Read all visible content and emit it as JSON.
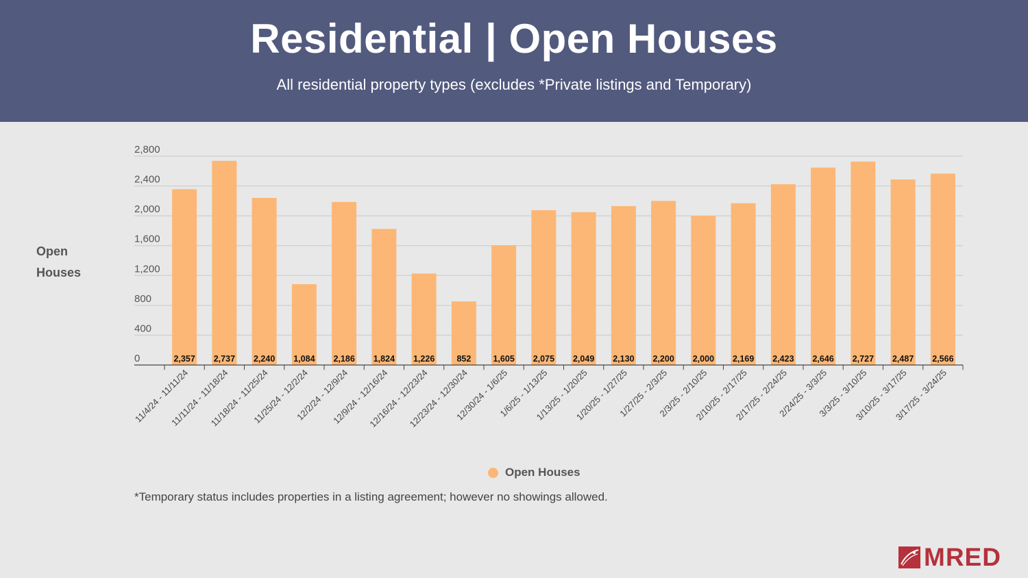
{
  "header": {
    "title": "Residential | Open Houses",
    "subtitle": "All residential property types (excludes *Private listings and Temporary)"
  },
  "colors": {
    "header_bg": "#525a7e",
    "bar": "#fcb776",
    "brand_red": "#b5313c"
  },
  "chart_data": {
    "type": "bar",
    "title": "",
    "xlabel": "",
    "ylabel": "Open Houses",
    "ylim": [
      0,
      2800
    ],
    "yticks": [
      0,
      400,
      800,
      1200,
      1600,
      2000,
      2400,
      2800
    ],
    "ytick_labels": [
      "0",
      "400",
      "800",
      "1,200",
      "1,600",
      "2,000",
      "2,400",
      "2,800"
    ],
    "grid": true,
    "legend_position": "bottom",
    "categories": [
      "11/4/24 - 11/11/24",
      "11/11/24 - 11/18/24",
      "11/18/24 - 11/25/24",
      "11/25/24 - 12/2/24",
      "12/2/24 - 12/9/24",
      "12/9/24 - 12/16/24",
      "12/16/24 - 12/23/24",
      "12/23/24 - 12/30/24",
      "12/30/24 - 1/6/25",
      "1/6/25 - 1/13/25",
      "1/13/25 - 1/20/25",
      "1/20/25 - 1/27/25",
      "1/27/25 - 2/3/25",
      "2/3/25 - 2/10/25",
      "2/10/25 - 2/17/25",
      "2/17/25 - 2/24/25",
      "2/24/25 - 3/3/25",
      "3/3/25 - 3/10/25",
      "3/10/25 - 3/17/25",
      "3/17/25 - 3/24/25"
    ],
    "series": [
      {
        "name": "Open Houses",
        "values": [
          2357,
          2737,
          2240,
          1084,
          2186,
          1824,
          1226,
          852,
          1605,
          2075,
          2049,
          2130,
          2200,
          2000,
          2169,
          2423,
          2646,
          2727,
          2487,
          2566
        ],
        "labels": [
          "2,357",
          "2,737",
          "2,240",
          "1,084",
          "2,186",
          "1,824",
          "1,226",
          "852",
          "1,605",
          "2,075",
          "2,049",
          "2,130",
          "2,200",
          "2,000",
          "2,169",
          "2,423",
          "2,646",
          "2,727",
          "2,487",
          "2,566"
        ]
      }
    ]
  },
  "footnote": "*Temporary status includes properties in a listing agreement; however no showings allowed.",
  "logo": {
    "text": "MRED"
  }
}
